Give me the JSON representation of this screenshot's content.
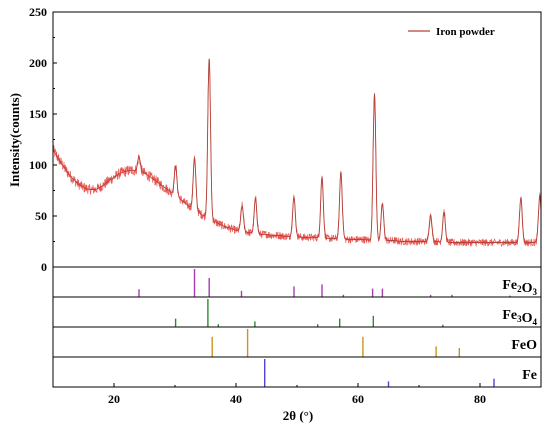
{
  "chart_data": {
    "type": "line",
    "xlabel": "2θ (°)",
    "ylabel": "Intensity(counts)",
    "xlim": [
      10,
      90
    ],
    "ylim": [
      0,
      250
    ],
    "x_ticks": [
      20,
      40,
      60,
      80
    ],
    "x_tick_labels": [
      "20",
      "40",
      "60",
      "80"
    ],
    "y_ticks": [
      0,
      50,
      100,
      150,
      200,
      250
    ],
    "y_tick_labels": [
      "0",
      "50",
      "100",
      "150",
      "200",
      "250"
    ],
    "grid": false,
    "legend": {
      "position": "top-right",
      "entries": [
        "Iron powder"
      ]
    },
    "series": [
      {
        "name": "Iron powder",
        "color": "#b5433a",
        "noise_color": "#e53935",
        "x": [
          10,
          11,
          12,
          13,
          14,
          15,
          16,
          17,
          18,
          19,
          20,
          21,
          22,
          23,
          24,
          25,
          26,
          27,
          28,
          29,
          30,
          31,
          32,
          33,
          34,
          35,
          36,
          37,
          38,
          39,
          40,
          41,
          42,
          43,
          44,
          45,
          46,
          47,
          48,
          49,
          50,
          51,
          52,
          53,
          54,
          55,
          56,
          57,
          58,
          59,
          60,
          61,
          62,
          63,
          64,
          65,
          66,
          67,
          68,
          69,
          70,
          71,
          72,
          73,
          74,
          75,
          76,
          77,
          78,
          79,
          80,
          81,
          82,
          83,
          84,
          85,
          86,
          87,
          88,
          89,
          90
        ],
        "y": [
          115,
          105,
          96,
          88,
          82,
          78,
          76,
          76,
          79,
          84,
          88,
          92,
          94,
          95,
          94,
          92,
          88,
          84,
          79,
          75,
          70,
          66,
          61,
          57,
          53,
          49,
          46,
          43,
          40,
          38,
          36,
          35,
          34,
          33,
          32,
          32,
          31,
          31,
          30,
          30,
          30,
          29,
          29,
          29,
          28,
          28,
          28,
          28,
          27,
          27,
          27,
          27,
          26,
          26,
          26,
          26,
          26,
          25,
          25,
          25,
          25,
          25,
          25,
          25,
          24,
          24,
          24,
          24,
          24,
          24,
          24,
          24,
          24,
          24,
          24,
          24,
          24,
          24,
          24,
          24,
          24
        ],
        "peaks": [
          {
            "x": 24.1,
            "y": 108
          },
          {
            "x": 30.1,
            "y": 99
          },
          {
            "x": 33.2,
            "y": 107
          },
          {
            "x": 35.6,
            "y": 204
          },
          {
            "x": 41.0,
            "y": 60
          },
          {
            "x": 43.2,
            "y": 67
          },
          {
            "x": 49.5,
            "y": 68
          },
          {
            "x": 54.1,
            "y": 88
          },
          {
            "x": 57.2,
            "y": 93
          },
          {
            "x": 62.7,
            "y": 170
          },
          {
            "x": 64.0,
            "y": 62
          },
          {
            "x": 71.9,
            "y": 51
          },
          {
            "x": 74.1,
            "y": 54
          },
          {
            "x": 86.7,
            "y": 68
          },
          {
            "x": 89.8,
            "y": 70
          }
        ]
      }
    ],
    "reference_panels": [
      {
        "label": "Fe",
        "sub": "2",
        "label2": "O",
        "sub2": "3",
        "color": "#a83bb5",
        "lines": [
          {
            "x": 24.1,
            "h": 0.28
          },
          {
            "x": 33.2,
            "h": 1.0
          },
          {
            "x": 35.6,
            "h": 0.68
          },
          {
            "x": 40.9,
            "h": 0.22
          },
          {
            "x": 49.5,
            "h": 0.38
          },
          {
            "x": 54.1,
            "h": 0.45
          },
          {
            "x": 57.6,
            "h": 0.08
          },
          {
            "x": 62.4,
            "h": 0.3
          },
          {
            "x": 64.0,
            "h": 0.3
          },
          {
            "x": 71.9,
            "h": 0.08
          },
          {
            "x": 75.4,
            "h": 0.08
          },
          {
            "x": 84.9,
            "h": 0.05
          }
        ]
      },
      {
        "label": "Fe",
        "sub": "3",
        "label2": "O",
        "sub2": "4",
        "color": "#2e8b2e",
        "lines": [
          {
            "x": 30.1,
            "h": 0.3
          },
          {
            "x": 35.4,
            "h": 1.0
          },
          {
            "x": 37.1,
            "h": 0.1
          },
          {
            "x": 43.1,
            "h": 0.2
          },
          {
            "x": 53.4,
            "h": 0.1
          },
          {
            "x": 57.0,
            "h": 0.3
          },
          {
            "x": 62.5,
            "h": 0.4
          },
          {
            "x": 73.9,
            "h": 0.08
          }
        ]
      },
      {
        "label": "FeO",
        "sub": "",
        "label2": "",
        "sub2": "",
        "color": "#c8961e",
        "lines": [
          {
            "x": 36.1,
            "h": 0.72
          },
          {
            "x": 41.9,
            "h": 1.0
          },
          {
            "x": 60.8,
            "h": 0.72
          },
          {
            "x": 72.8,
            "h": 0.38
          },
          {
            "x": 76.6,
            "h": 0.32
          }
        ]
      },
      {
        "label": "Fe",
        "sub": "",
        "label2": "",
        "sub2": "",
        "color": "#5b3fd6",
        "lines": [
          {
            "x": 44.7,
            "h": 1.0
          },
          {
            "x": 65.0,
            "h": 0.2
          },
          {
            "x": 82.3,
            "h": 0.3
          }
        ]
      }
    ]
  }
}
